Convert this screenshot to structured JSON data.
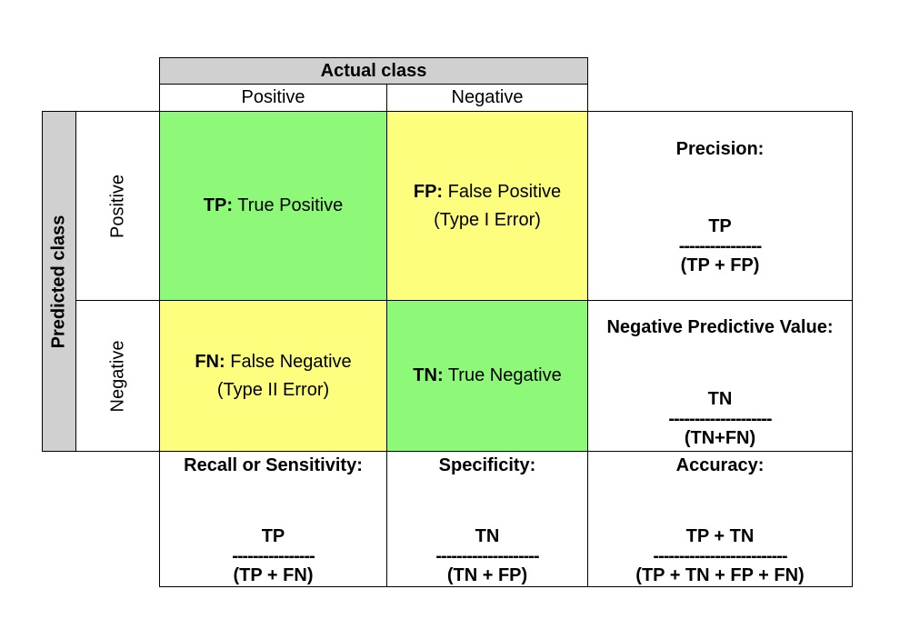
{
  "actual_class": {
    "title": "Actual class",
    "positive": "Positive",
    "negative": "Negative"
  },
  "predicted_class": {
    "title": "Predicted class",
    "positive": "Positive",
    "negative": "Negative"
  },
  "cells": {
    "tp": {
      "abbr": "TP:",
      "text": "True Positive",
      "color": "#8ef878"
    },
    "fp": {
      "abbr": "FP:",
      "text": "False Positive",
      "sub": "(Type I Error)",
      "color": "#fefe7e"
    },
    "fn": {
      "abbr": "FN:",
      "text": "False Negative",
      "sub": "(Type II Error)",
      "color": "#fefe7e"
    },
    "tn": {
      "abbr": "TN:",
      "text": "True Negative",
      "color": "#8ef878"
    }
  },
  "metrics": {
    "precision": {
      "name": "Precision:",
      "numerator": "TP",
      "line": "----------------",
      "denominator": "(TP + FP)"
    },
    "npv": {
      "name": "Negative Predictive Value:",
      "numerator": "TN",
      "line": "--------------------",
      "denominator": "(TN+FN)"
    },
    "recall": {
      "name": "Recall or Sensitivity:",
      "numerator": "TP",
      "line": "----------------",
      "denominator": "(TP + FN)"
    },
    "specificity": {
      "name": "Specificity:",
      "numerator": "TN",
      "line": "--------------------",
      "denominator": "(TN + FP)"
    },
    "accuracy": {
      "name": "Accuracy:",
      "numerator": "TP + TN",
      "line": "--------------------------",
      "denominator": "(TP + TN + FP + FN)"
    }
  }
}
